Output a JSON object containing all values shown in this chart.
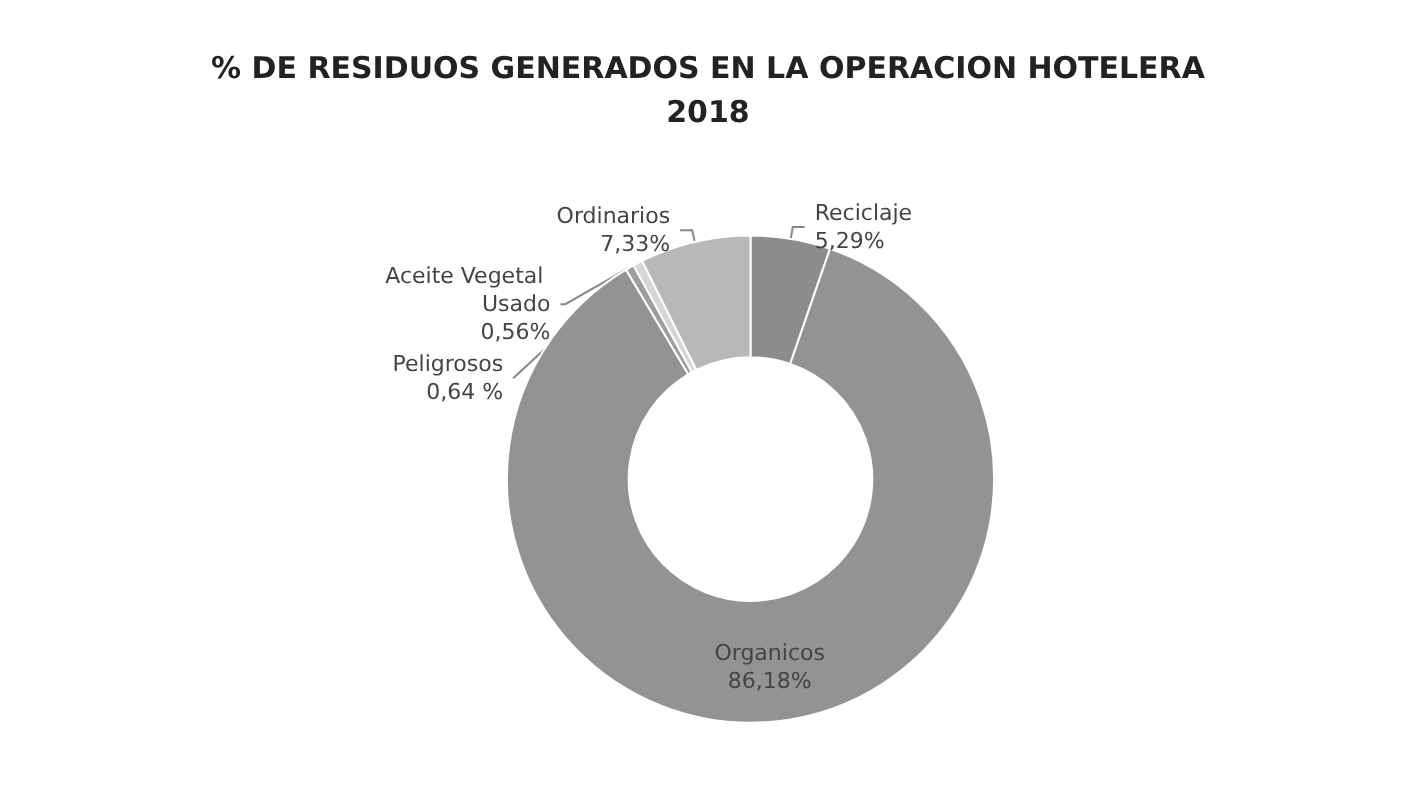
{
  "chart_data": {
    "type": "donut",
    "title": "% DE RESIDUOS GENERADOS EN LA OPERACION HOTELERA\n2018",
    "categories": [
      "Reciclaje",
      "Organicos",
      "Aceite Vegetal Usado",
      "Peligrosos",
      "Ordinarios"
    ],
    "values": [
      5.29,
      86.18,
      0.56,
      0.64,
      7.33
    ],
    "colors": [
      "#8c8c8c",
      "#939393",
      "#9e9e9e",
      "#d6d6d6",
      "#b8b8b8"
    ],
    "value_labels": [
      "5,29%",
      "86,18%",
      "0,56%",
      "0,64 %",
      "7,33%"
    ],
    "legend": false
  }
}
